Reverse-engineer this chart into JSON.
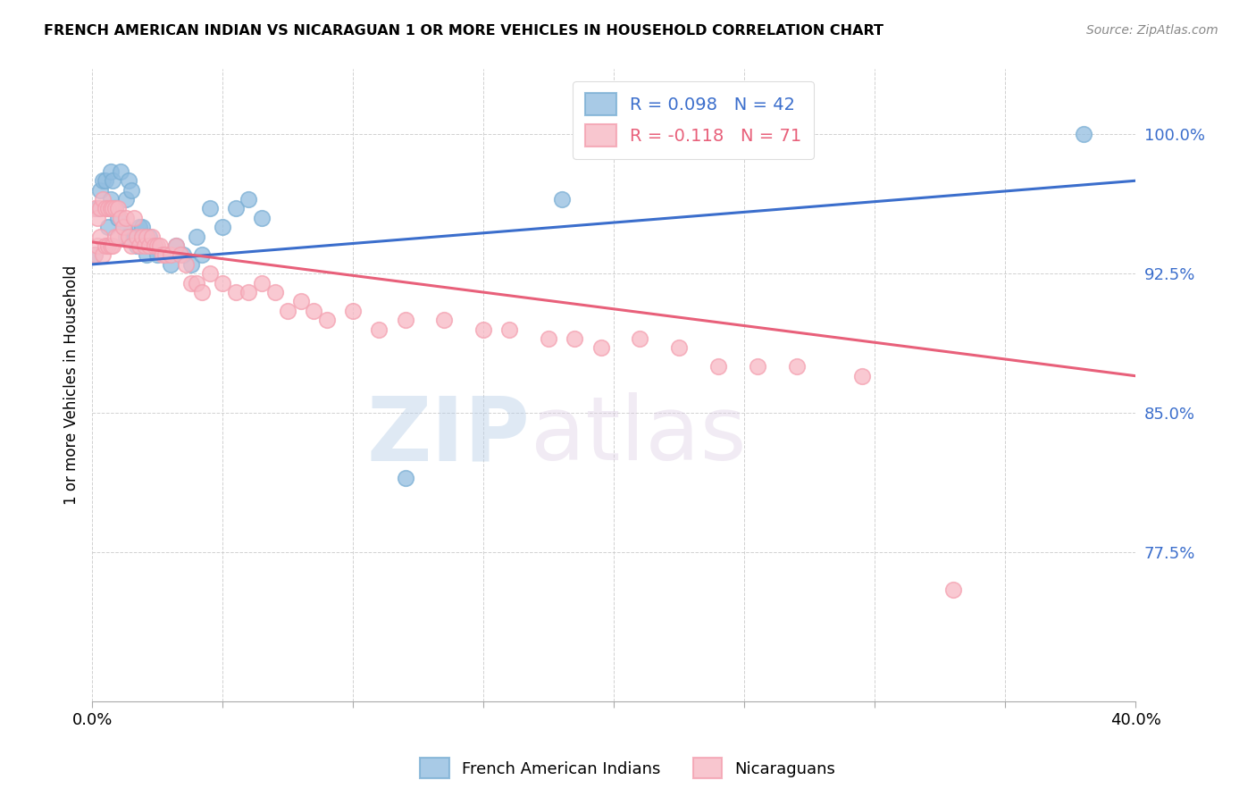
{
  "title": "FRENCH AMERICAN INDIAN VS NICARAGUAN 1 OR MORE VEHICLES IN HOUSEHOLD CORRELATION CHART",
  "source": "Source: ZipAtlas.com",
  "ylabel": "1 or more Vehicles in Household",
  "ytick_labels": [
    "100.0%",
    "92.5%",
    "85.0%",
    "77.5%"
  ],
  "ytick_values": [
    1.0,
    0.925,
    0.85,
    0.775
  ],
  "xlim": [
    0.0,
    0.4
  ],
  "ylim": [
    0.695,
    1.035
  ],
  "blue_color": "#7BAFD4",
  "pink_color": "#F4A0B0",
  "blue_line_color": "#3B6ECC",
  "pink_line_color": "#E8607A",
  "blue_scatter_color": "#92BDE0",
  "pink_scatter_color": "#F7B8C4",
  "watermark_zip": "ZIP",
  "watermark_atlas": "atlas",
  "fai_x": [
    0.001,
    0.002,
    0.003,
    0.004,
    0.005,
    0.006,
    0.006,
    0.007,
    0.007,
    0.008,
    0.009,
    0.01,
    0.011,
    0.012,
    0.013,
    0.013,
    0.014,
    0.015,
    0.016,
    0.017,
    0.018,
    0.019,
    0.02,
    0.021,
    0.022,
    0.023,
    0.024,
    0.025,
    0.03,
    0.032,
    0.035,
    0.038,
    0.04,
    0.042,
    0.045,
    0.05,
    0.055,
    0.06,
    0.065,
    0.12,
    0.18,
    0.38
  ],
  "fai_y": [
    0.935,
    0.96,
    0.97,
    0.975,
    0.975,
    0.96,
    0.95,
    0.965,
    0.98,
    0.975,
    0.96,
    0.955,
    0.98,
    0.95,
    0.945,
    0.965,
    0.975,
    0.97,
    0.945,
    0.94,
    0.95,
    0.95,
    0.945,
    0.935,
    0.945,
    0.94,
    0.94,
    0.935,
    0.93,
    0.94,
    0.935,
    0.93,
    0.945,
    0.935,
    0.96,
    0.95,
    0.96,
    0.965,
    0.955,
    0.815,
    0.965,
    1.0
  ],
  "nic_x": [
    0.001,
    0.001,
    0.002,
    0.002,
    0.003,
    0.003,
    0.004,
    0.004,
    0.005,
    0.005,
    0.006,
    0.006,
    0.007,
    0.007,
    0.008,
    0.008,
    0.009,
    0.009,
    0.01,
    0.01,
    0.011,
    0.012,
    0.013,
    0.014,
    0.015,
    0.016,
    0.017,
    0.018,
    0.019,
    0.02,
    0.021,
    0.022,
    0.023,
    0.024,
    0.025,
    0.026,
    0.027,
    0.028,
    0.03,
    0.032,
    0.034,
    0.036,
    0.038,
    0.04,
    0.042,
    0.045,
    0.05,
    0.055,
    0.06,
    0.065,
    0.07,
    0.075,
    0.08,
    0.085,
    0.09,
    0.1,
    0.11,
    0.12,
    0.135,
    0.15,
    0.16,
    0.175,
    0.185,
    0.195,
    0.21,
    0.225,
    0.24,
    0.255,
    0.27,
    0.295,
    0.33
  ],
  "nic_y": [
    0.935,
    0.96,
    0.94,
    0.955,
    0.945,
    0.96,
    0.935,
    0.965,
    0.94,
    0.96,
    0.94,
    0.96,
    0.94,
    0.96,
    0.94,
    0.96,
    0.945,
    0.96,
    0.945,
    0.96,
    0.955,
    0.95,
    0.955,
    0.945,
    0.94,
    0.955,
    0.945,
    0.94,
    0.945,
    0.94,
    0.945,
    0.94,
    0.945,
    0.94,
    0.94,
    0.94,
    0.935,
    0.935,
    0.935,
    0.94,
    0.935,
    0.93,
    0.92,
    0.92,
    0.915,
    0.925,
    0.92,
    0.915,
    0.915,
    0.92,
    0.915,
    0.905,
    0.91,
    0.905,
    0.9,
    0.905,
    0.895,
    0.9,
    0.9,
    0.895,
    0.895,
    0.89,
    0.89,
    0.885,
    0.89,
    0.885,
    0.875,
    0.875,
    0.875,
    0.87,
    0.755
  ]
}
